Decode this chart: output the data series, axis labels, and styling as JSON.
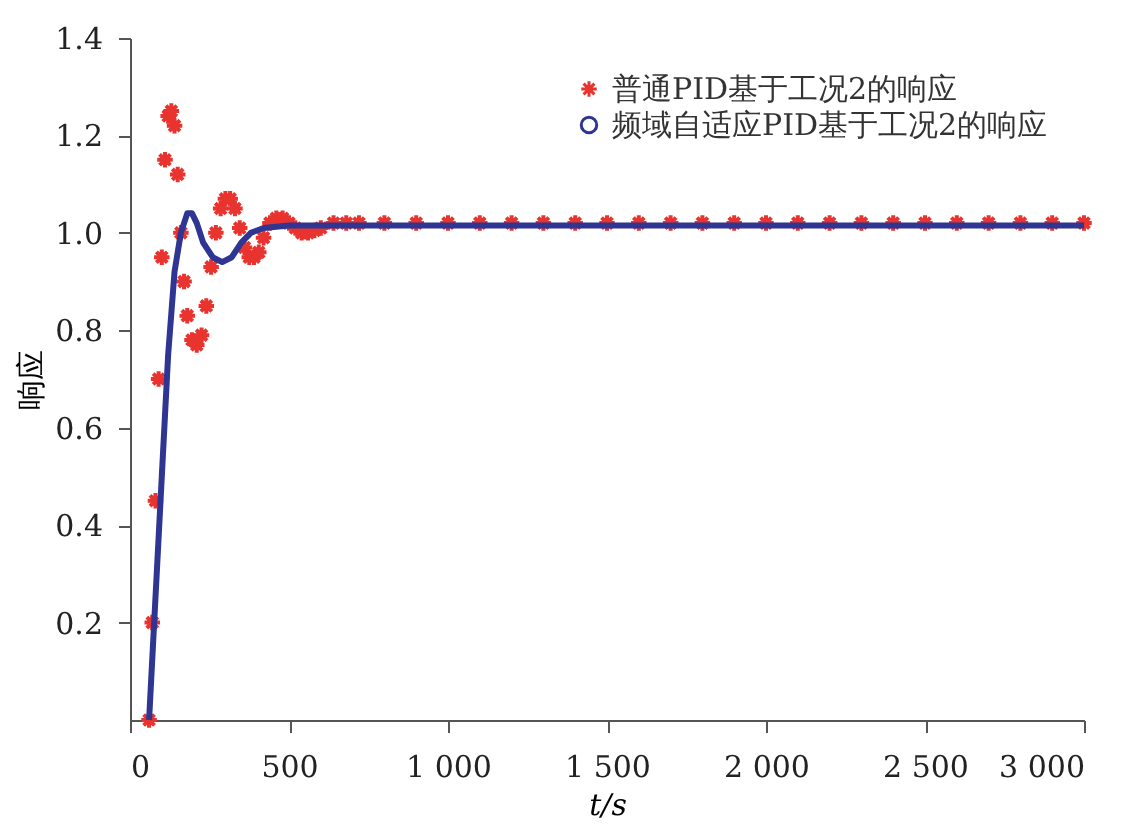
{
  "chart_data": {
    "type": "line",
    "xlabel": "t/s",
    "ylabel": "响应",
    "xlim": [
      0,
      3000
    ],
    "ylim": [
      0,
      1.4
    ],
    "xticks": [
      0,
      500,
      {
        "value": 1000,
        "label": "1 000"
      },
      {
        "value": 1500,
        "label": "1 500"
      },
      {
        "value": 2000,
        "label": "2 000"
      },
      {
        "value": 2500,
        "label": "2 500"
      },
      {
        "value": 3000,
        "label": "3 000"
      }
    ],
    "yticks": [
      0.2,
      0.4,
      0.6,
      0.8,
      {
        "value": 1,
        "label": "1.0"
      },
      1.2,
      1.4
    ],
    "grid": false,
    "legend": "top right",
    "series": [
      {
        "name": "普通PID基于工况2的响应",
        "type": "scatter",
        "marker": "cross",
        "color": "#e8332e",
        "x": [
          60,
          70,
          80,
          90,
          100,
          110,
          120,
          130,
          140,
          150,
          160,
          170,
          180,
          195,
          210,
          225,
          240,
          255,
          270,
          285,
          300,
          315,
          330,
          345,
          360,
          375,
          390,
          405,
          420,
          440,
          460,
          480,
          500,
          520,
          540,
          560,
          580,
          600,
          640,
          680,
          720,
          800,
          900,
          1000,
          1100,
          1200,
          1300,
          1400,
          1500,
          1600,
          1700,
          1800,
          1900,
          2000,
          2100,
          2200,
          2300,
          2400,
          2500,
          2600,
          2700,
          2800,
          2900,
          3000
        ],
        "values": [
          0,
          0.2,
          0.45,
          0.7,
          0.95,
          1.15,
          1.24,
          1.25,
          1.22,
          1.12,
          1.0,
          0.9,
          0.83,
          0.78,
          0.77,
          0.79,
          0.85,
          0.93,
          1.0,
          1.05,
          1.07,
          1.07,
          1.05,
          1.01,
          0.97,
          0.95,
          0.95,
          0.96,
          0.99,
          1.02,
          1.03,
          1.03,
          1.02,
          1.01,
          1.0,
          1.0,
          1.005,
          1.01,
          1.02,
          1.02,
          1.02,
          1.02,
          1.02,
          1.02,
          1.02,
          1.02,
          1.02,
          1.02,
          1.02,
          1.02,
          1.02,
          1.02,
          1.02,
          1.02,
          1.02,
          1.02,
          1.02,
          1.02,
          1.02,
          1.02,
          1.02,
          1.02,
          1.02,
          1.02
        ]
      },
      {
        "name": "频域自适应PID基于工况2的响应",
        "color": "#2e3592",
        "x": [
          60,
          80,
          100,
          120,
          140,
          160,
          180,
          195,
          210,
          230,
          260,
          290,
          320,
          350,
          380,
          420,
          500,
          700,
          1000,
          2000,
          3000
        ],
        "values": [
          0,
          0.25,
          0.5,
          0.75,
          0.92,
          1.0,
          1.04,
          1.04,
          1.02,
          0.98,
          0.95,
          0.94,
          0.95,
          0.98,
          1.0,
          1.01,
          1.015,
          1.015,
          1.015,
          1.015,
          1.015
        ]
      }
    ]
  }
}
